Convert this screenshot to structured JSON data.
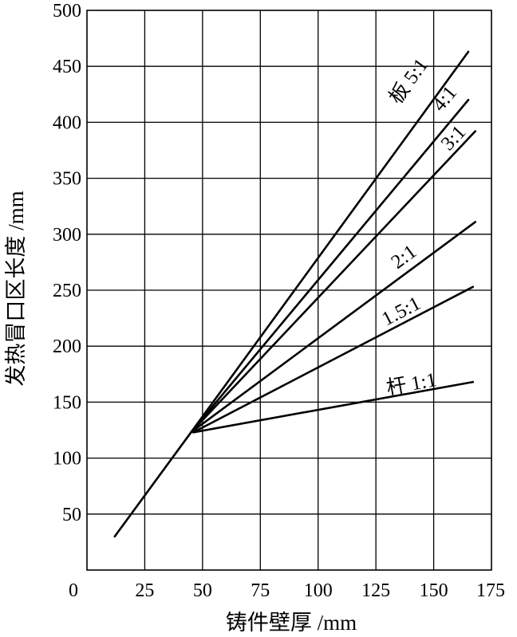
{
  "chart_data": {
    "type": "line",
    "xlabel": "铸件壁厚 /mm",
    "ylabel": "发热冒口区长度 /mm",
    "xlim": [
      0,
      175
    ],
    "ylim": [
      0,
      500
    ],
    "xticks": [
      0,
      25,
      50,
      75,
      100,
      125,
      150,
      175
    ],
    "yticks": [
      50,
      100,
      150,
      200,
      250,
      300,
      350,
      400,
      450,
      500
    ],
    "grid": true,
    "series": [
      {
        "name": "",
        "x": [
          12,
          45
        ],
        "y": [
          30,
          123
        ]
      },
      {
        "name": "板 5:1",
        "x": [
          45,
          165
        ],
        "y": [
          123,
          463
        ]
      },
      {
        "name": "4:1",
        "x": [
          45,
          165
        ],
        "y": [
          123,
          420
        ]
      },
      {
        "name": "3:1",
        "x": [
          45,
          168
        ],
        "y": [
          123,
          392
        ]
      },
      {
        "name": "2:1",
        "x": [
          45,
          168
        ],
        "y": [
          123,
          311
        ]
      },
      {
        "name": "1.5:1",
        "x": [
          46,
          167
        ],
        "y": [
          123,
          253
        ]
      },
      {
        "name": "杆 1:1",
        "x": [
          46,
          167
        ],
        "y": [
          123,
          168
        ]
      }
    ]
  }
}
